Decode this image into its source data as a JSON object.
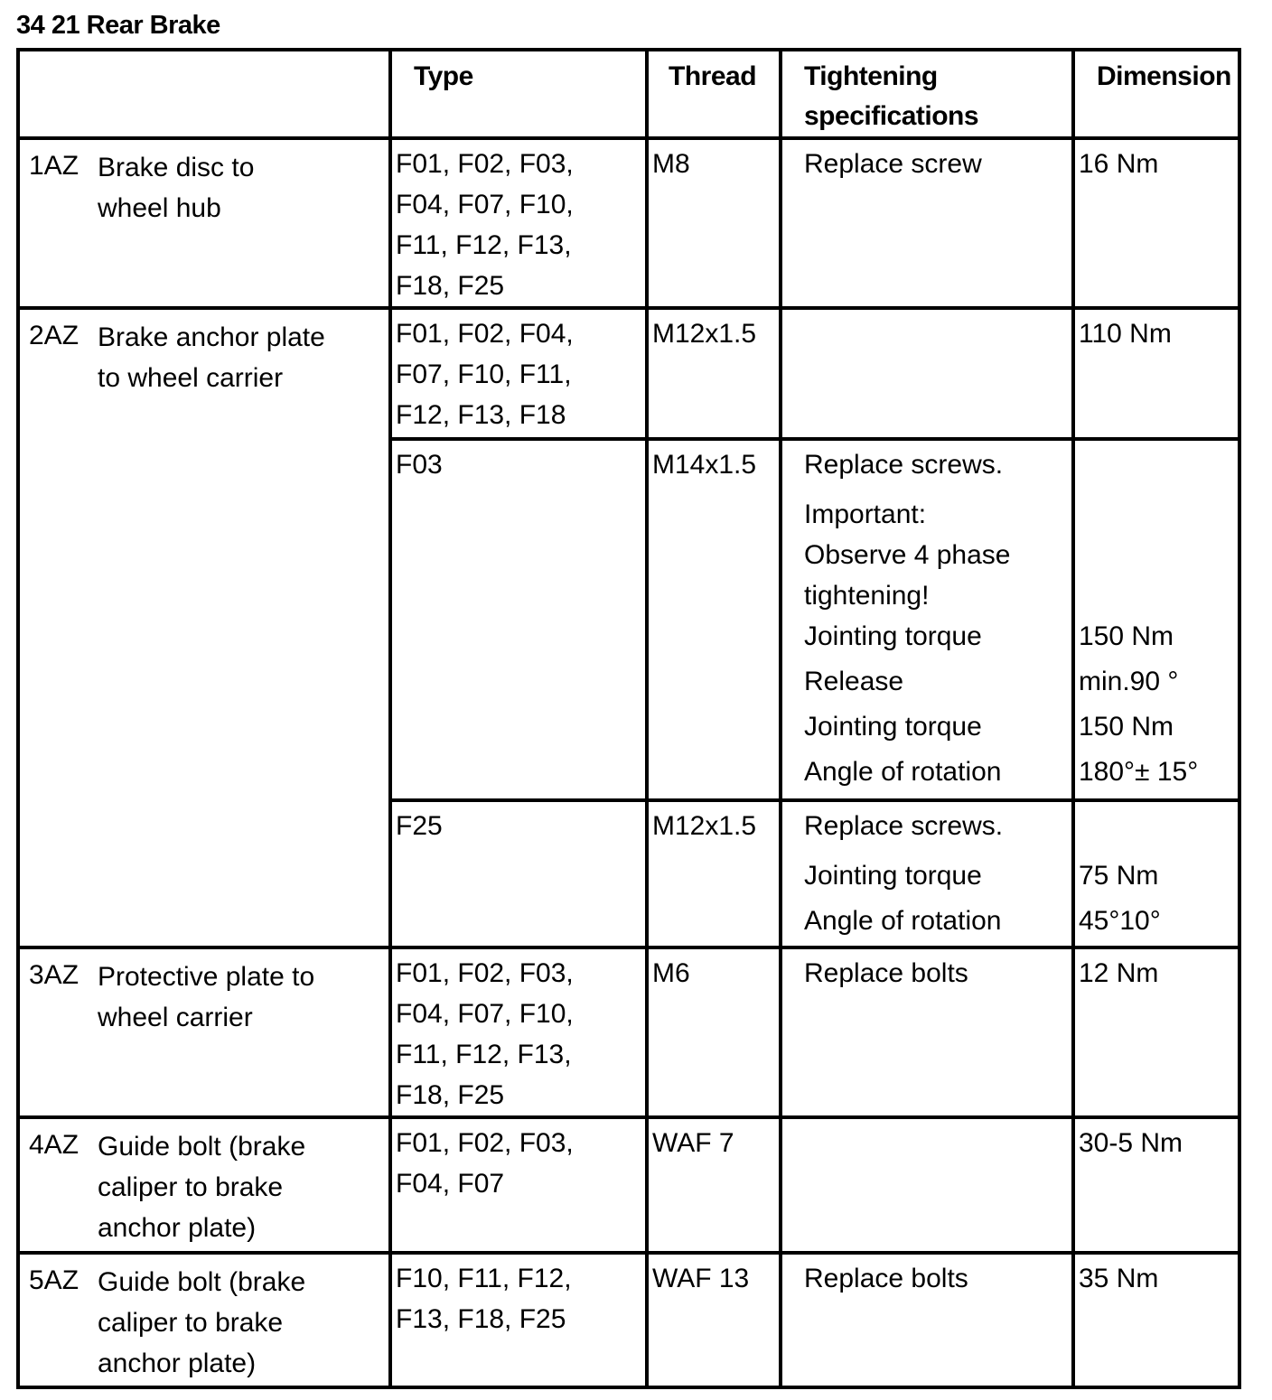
{
  "title": "34 21 Rear Brake",
  "headers": {
    "type": "Type",
    "thread": "Thread",
    "spec1": "Tightening",
    "spec2": "specifications",
    "dimension": "Dimension"
  },
  "rows": [
    {
      "code": "1AZ",
      "desc": [
        "Brake disc to",
        "wheel hub"
      ],
      "type": [
        "F01, F02, F03,",
        "F04, F07, F10,",
        "F11, F12, F13,",
        "F18, F25"
      ],
      "thread": "M8",
      "spec": [
        "Replace screw"
      ],
      "dim": [
        "16 Nm"
      ]
    },
    {
      "code": "2AZ",
      "desc": [
        "Brake anchor plate",
        "to wheel carrier"
      ],
      "sub": [
        {
          "type": [
            "F01, F02, F04,",
            "F07, F10, F11,",
            "F12, F13, F18"
          ],
          "thread": "M12x1.5",
          "spec": [],
          "dim": [
            "110 Nm"
          ]
        },
        {
          "type": [
            "F03"
          ],
          "thread": "M14x1.5",
          "spec": [
            "Replace screws.",
            "Important:",
            "Observe 4 phase",
            "tightening!",
            "Jointing torque",
            "Release",
            "Jointing torque",
            "Angle of rotation"
          ],
          "dim": [
            "",
            "",
            "",
            "",
            "150 Nm",
            "min.90 °",
            "150 Nm",
            "180°± 15°"
          ]
        },
        {
          "type": [
            "F25"
          ],
          "thread": "M12x1.5",
          "spec": [
            "Replace screws.",
            "Jointing torque",
            "Angle of rotation"
          ],
          "dim": [
            "",
            "75 Nm",
            "45°10°"
          ]
        }
      ]
    },
    {
      "code": "3AZ",
      "desc": [
        "Protective plate to",
        "wheel carrier"
      ],
      "type": [
        "F01, F02, F03,",
        "F04, F07, F10,",
        "F11, F12, F13,",
        "F18, F25"
      ],
      "thread": "M6",
      "spec": [
        "Replace bolts"
      ],
      "dim": [
        "12 Nm"
      ]
    },
    {
      "code": "4AZ",
      "desc": [
        "Guide bolt (brake",
        "caliper to brake",
        "anchor plate)"
      ],
      "type": [
        "F01, F02, F03,",
        "F04, F07"
      ],
      "thread": "WAF 7",
      "spec": [],
      "dim": [
        "30-5 Nm"
      ]
    },
    {
      "code": "5AZ",
      "desc": [
        "Guide bolt (brake",
        "caliper to brake",
        "anchor plate)"
      ],
      "type": [
        "F10, F11, F12,",
        "F13, F18, F25"
      ],
      "thread": "WAF 13",
      "spec": [
        "Replace bolts"
      ],
      "dim": [
        "35 Nm"
      ]
    }
  ]
}
